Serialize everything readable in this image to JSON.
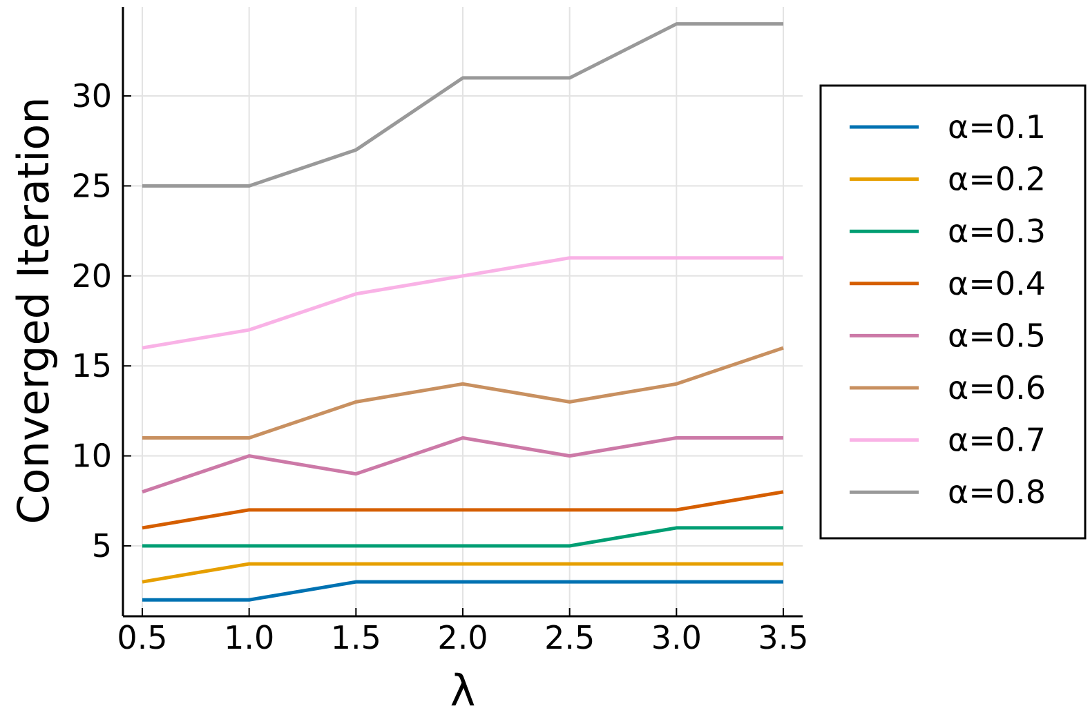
{
  "chart_data": {
    "type": "line",
    "title": "",
    "xlabel": "λ",
    "ylabel": "Converged Iteration",
    "x": [
      0.5,
      1.0,
      1.5,
      2.0,
      2.5,
      3.0,
      3.5
    ],
    "x_ticks": [
      "0.5",
      "1.0",
      "1.5",
      "2.0",
      "2.5",
      "3.0",
      "3.5"
    ],
    "y_ticks": [
      "5",
      "10",
      "15",
      "20",
      "25",
      "30"
    ],
    "y_tick_values": [
      5,
      10,
      15,
      20,
      25,
      30
    ],
    "xlim": [
      0.4,
      3.6
    ],
    "ylim": [
      1,
      35
    ],
    "grid": true,
    "legend_position": "outside-right",
    "series": [
      {
        "name": "α=0.1",
        "color": "#0072b2",
        "values": [
          2,
          2,
          3,
          3,
          3,
          3,
          3
        ]
      },
      {
        "name": "α=0.2",
        "color": "#e69f00",
        "values": [
          3,
          4,
          4,
          4,
          4,
          4,
          4
        ]
      },
      {
        "name": "α=0.3",
        "color": "#009e73",
        "values": [
          5,
          5,
          5,
          5,
          5,
          6,
          6
        ]
      },
      {
        "name": "α=0.4",
        "color": "#d55e00",
        "values": [
          6,
          7,
          7,
          7,
          7,
          7,
          8
        ]
      },
      {
        "name": "α=0.5",
        "color": "#cc79a7",
        "values": [
          8,
          10,
          9,
          11,
          10,
          11,
          11
        ]
      },
      {
        "name": "α=0.6",
        "color": "#c89060",
        "values": [
          11,
          11,
          13,
          14,
          13,
          14,
          16
        ]
      },
      {
        "name": "α=0.7",
        "color": "#f9b2e6",
        "values": [
          16,
          17,
          19,
          20,
          21,
          21,
          21
        ]
      },
      {
        "name": "α=0.8",
        "color": "#999999",
        "values": [
          25,
          25,
          27,
          31,
          31,
          34,
          34
        ]
      }
    ]
  }
}
